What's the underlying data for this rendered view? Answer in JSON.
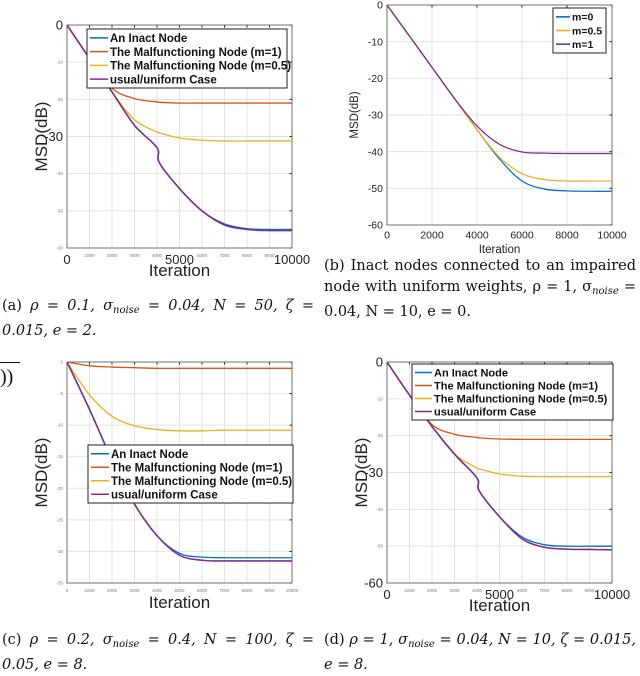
{
  "colors": {
    "blue": "#0072BD",
    "red": "#D95319",
    "yellow": "#EDB120",
    "purple": "#7E2F8E"
  },
  "stray_text": "))",
  "captions": [
    {
      "label": "(a)",
      "pre": "ρ = 0.1, σ",
      "sub": "noise",
      "post": " = 0.04, N = 50, ζ = 0.015, e = 2."
    },
    {
      "label": "(b)",
      "pre": "Inact nodes connected to an impaired node with uniform weights, ρ = 1, σ",
      "sub": "noise",
      "post": " = 0.04, N = 10, e = 0."
    },
    {
      "label": "(c)",
      "pre": "ρ = 0.2, σ",
      "sub": "noise",
      "post": " = 0.4, N = 100, ζ = 0.05, e = 8."
    },
    {
      "label": "(d)",
      "pre": "ρ = 1, σ",
      "sub": "noise",
      "post": " = 0.04, N = 10, ζ = 0.015, e = 8."
    }
  ],
  "chart_data": [
    {
      "id": "a",
      "type": "line",
      "xlabel": "Iteration",
      "ylabel": "MSD(dB)",
      "xlim": [
        0,
        10000
      ],
      "ylim": [
        -60,
        0
      ],
      "grid": true,
      "legend_position": "top",
      "xticks": [
        "0",
        "1000",
        "2000",
        "3000",
        "4000",
        "5000",
        "6000",
        "7000",
        "8000",
        "9000",
        "10000"
      ],
      "yticks": [
        "0",
        "-10",
        "-20",
        "-30",
        "-40",
        "-50",
        "-60"
      ],
      "x": [
        0,
        1000,
        2000,
        3000,
        4000,
        4100,
        5000,
        6000,
        7000,
        8000,
        9000,
        10000
      ],
      "series": [
        {
          "name": "An Inact Node",
          "color": "blue",
          "values": [
            0,
            -9,
            -18,
            -27,
            -33,
            -37,
            -44,
            -50,
            -53.5,
            -54.8,
            -55,
            -55
          ]
        },
        {
          "name": "The Malfunctioning Node (m=1)",
          "color": "red",
          "values": [
            0,
            -9,
            -17,
            -19.8,
            -20.7,
            -20.8,
            -21,
            -21,
            -21,
            -21,
            -21,
            -21
          ]
        },
        {
          "name": "The Malfunctioning Node (m=0.5)",
          "color": "yellow",
          "values": [
            0,
            -9,
            -18,
            -25.5,
            -28.8,
            -29,
            -30.4,
            -31,
            -31.2,
            -31.2,
            -31.2,
            -31.2
          ]
        },
        {
          "name": "usual/uniform Case",
          "color": "purple",
          "values": [
            0,
            -9,
            -18,
            -27,
            -33,
            -37,
            -44,
            -50,
            -53.8,
            -55,
            -55.3,
            -55.3
          ]
        }
      ]
    },
    {
      "id": "b",
      "type": "line",
      "xlabel": "Iteration",
      "ylabel": "MSD(dB)",
      "xlim": [
        0,
        10000
      ],
      "ylim": [
        -60,
        0
      ],
      "grid": true,
      "legend_position": "top-right",
      "xticks": [
        "0",
        "2000",
        "4000",
        "6000",
        "8000",
        "10000"
      ],
      "yticks": [
        "0",
        "-10",
        "-20",
        "-30",
        "-40",
        "-50",
        "-60"
      ],
      "x": [
        0,
        1000,
        2000,
        3000,
        4000,
        5000,
        6000,
        7000,
        8000,
        9000,
        10000
      ],
      "series": [
        {
          "name": "m=0",
          "color": "blue",
          "values": [
            0,
            -8.5,
            -17,
            -25.5,
            -34,
            -42,
            -48,
            -50.2,
            -50.7,
            -50.8,
            -50.8
          ]
        },
        {
          "name": "m=0.5",
          "color": "yellow",
          "values": [
            0,
            -8.5,
            -17,
            -25.5,
            -34,
            -41.5,
            -46,
            -47.6,
            -48,
            -48,
            -48
          ]
        },
        {
          "name": "m=1",
          "color": "purple",
          "values": [
            0,
            -8.5,
            -17,
            -25.5,
            -33,
            -38,
            -40.1,
            -40.4,
            -40.5,
            -40.5,
            -40.5
          ]
        }
      ]
    },
    {
      "id": "c",
      "type": "line",
      "xlabel": "Iteration",
      "ylabel": "MSD(dB)",
      "xlim": [
        0,
        10000
      ],
      "ylim": [
        -35,
        0
      ],
      "grid": true,
      "legend_position": "center",
      "xticks": [
        "0",
        "1000",
        "2000",
        "3000",
        "4000",
        "5000",
        "6000",
        "7000",
        "8000",
        "9000",
        "10000"
      ],
      "yticks": [
        "0",
        "-5",
        "-10",
        "-15",
        "-20",
        "-25",
        "-30",
        "-35"
      ],
      "x": [
        0,
        1000,
        2000,
        3000,
        4000,
        5000,
        6000,
        7000,
        8000,
        9000,
        10000
      ],
      "series": [
        {
          "name": "An Inact Node",
          "color": "blue",
          "values": [
            0,
            -7.5,
            -15.5,
            -22.5,
            -27.5,
            -30.3,
            -30.9,
            -31,
            -31,
            -31,
            -31
          ]
        },
        {
          "name": "The Malfunctioning Node (m=1)",
          "color": "red",
          "values": [
            0,
            -0.6,
            -0.8,
            -0.9,
            -1,
            -1,
            -1,
            -1,
            -1,
            -1,
            -1
          ]
        },
        {
          "name": "The Malfunctioning Node (m=0.5)",
          "color": "yellow",
          "values": [
            0,
            -5.2,
            -8.6,
            -10.1,
            -10.7,
            -10.9,
            -10.9,
            -10.8,
            -10.8,
            -10.8,
            -10.8
          ]
        },
        {
          "name": "usual/uniform Case",
          "color": "purple",
          "values": [
            0,
            -7.5,
            -15.5,
            -22.5,
            -27.5,
            -30.6,
            -31.4,
            -31.5,
            -31.5,
            -31.5,
            -31.5
          ]
        }
      ]
    },
    {
      "id": "d",
      "type": "line",
      "xlabel": "Iteration",
      "ylabel": "MSD(dB)",
      "xlim": [
        0,
        10000
      ],
      "ylim": [
        -60,
        0
      ],
      "grid": true,
      "legend_position": "top",
      "xticks": [
        "0",
        "1000",
        "2000",
        "3000",
        "4000",
        "5000",
        "6000",
        "7000",
        "8000",
        "9000",
        "10000"
      ],
      "yticks": [
        "0",
        "-10",
        "-20",
        "-30",
        "-40",
        "-50",
        "-60"
      ],
      "x": [
        0,
        1000,
        2000,
        3000,
        4000,
        4100,
        5000,
        6000,
        7000,
        8000,
        9000,
        10000
      ],
      "series": [
        {
          "name": "An Inact Node",
          "color": "blue",
          "values": [
            0,
            -9,
            -17.5,
            -25,
            -31.5,
            -35,
            -42,
            -47.5,
            -49.6,
            -50,
            -50,
            -50
          ]
        },
        {
          "name": "The Malfunctioning Node (m=1)",
          "color": "red",
          "values": [
            0,
            -9,
            -17,
            -19.6,
            -20.5,
            -20.6,
            -20.9,
            -21,
            -21,
            -21,
            -21,
            -21
          ]
        },
        {
          "name": "The Malfunctioning Node (m=0.5)",
          "color": "yellow",
          "values": [
            0,
            -9,
            -17.5,
            -25,
            -28.8,
            -29,
            -30.4,
            -31,
            -31.1,
            -31.1,
            -31.1,
            -31.1
          ]
        },
        {
          "name": "usual/uniform Case",
          "color": "purple",
          "values": [
            0,
            -9,
            -17.5,
            -25,
            -31.5,
            -35,
            -42,
            -48,
            -50.3,
            -50.8,
            -50.9,
            -51
          ]
        }
      ]
    }
  ]
}
